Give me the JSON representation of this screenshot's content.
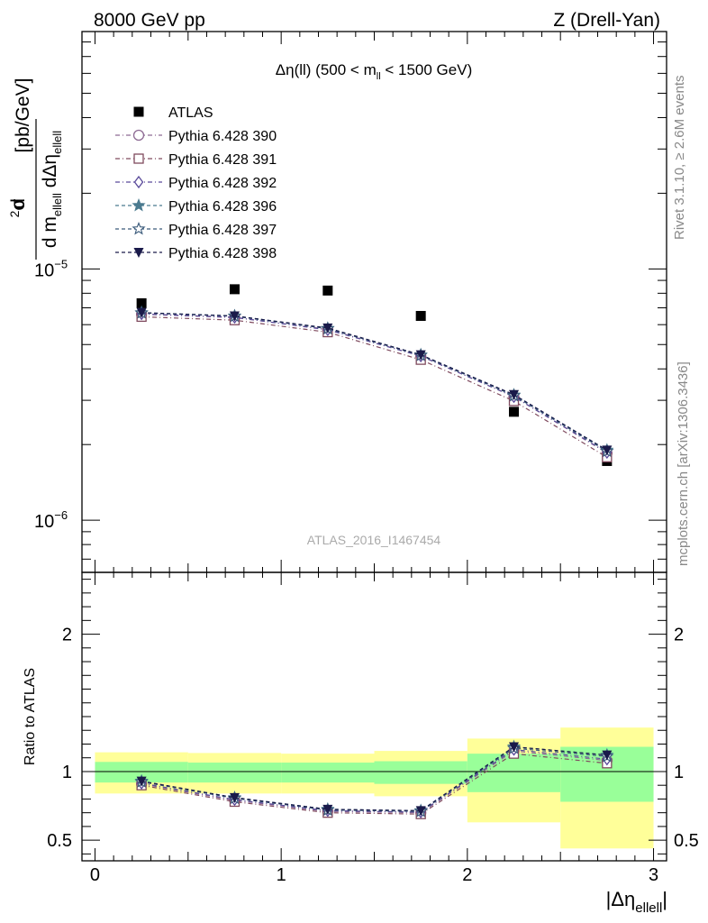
{
  "header": {
    "left": "8000 GeV pp",
    "right": "Z (Drell-Yan)"
  },
  "side_labels": {
    "rivet": "Rivet 3.1.10, ≥ 2.6M events",
    "mcplots": "mcplots.cern.ch [arXiv:1306.3436]"
  },
  "chart_data": [
    {
      "type": "scatter",
      "title": "Δη(ll) (500 < m_ll < 1500 GeV)",
      "title_parts": {
        "main": "Δη(ll) (500 < m",
        "sub": "ll",
        "tail": " < 1500 GeV)"
      },
      "ylabel": "d²σ / d m_ellell dΔη_ellell [pb/GeV]",
      "ylabel_parts": {
        "top": "d²σ",
        "bottom_a": "d m",
        "bottom_sub_a": "ellell",
        "bottom_b": "dΔη",
        "bottom_sub_b": "ellell",
        "unit": "[pb/GeV]"
      },
      "yscale": "log",
      "ylim": [
        6.2e-07,
        8.8e-05
      ],
      "xlim": [
        -0.07,
        3.07
      ],
      "ytick_labels": [
        {
          "value": 1e-05,
          "base": "10",
          "exp": "−5"
        },
        {
          "value": 1e-06,
          "base": "10",
          "exp": "−6"
        }
      ],
      "watermark": "ATLAS_2016_I1467454",
      "legend_position": "top-left",
      "x": [
        0.25,
        0.75,
        1.25,
        1.75,
        2.25,
        2.75
      ],
      "series": [
        {
          "name": "ATLAS",
          "marker": "filled-square",
          "color": "#000000",
          "values": [
            7.3e-06,
            8.3e-06,
            8.2e-06,
            6.5e-06,
            2.7e-06,
            1.72e-06
          ]
        },
        {
          "name": "Pythia 6.428 390",
          "marker": "open-circle",
          "color": "#8e6b94",
          "values": [
            6.6e-06,
            6.4e-06,
            5.75e-06,
            4.5e-06,
            3.1e-06,
            1.85e-06
          ]
        },
        {
          "name": "Pythia 6.428 391",
          "marker": "open-square",
          "color": "#7f4a5e",
          "values": [
            6.45e-06,
            6.25e-06,
            5.6e-06,
            4.35e-06,
            2.98e-06,
            1.78e-06
          ]
        },
        {
          "name": "Pythia 6.428 392",
          "marker": "open-diamond",
          "color": "#5a4a9a",
          "values": [
            6.62e-06,
            6.42e-06,
            5.72e-06,
            4.5e-06,
            3.1e-06,
            1.86e-06
          ]
        },
        {
          "name": "Pythia 6.428 396",
          "marker": "filled-star",
          "color": "#4a7a8f",
          "values": [
            6.7e-06,
            6.5e-06,
            5.8e-06,
            4.55e-06,
            3.15e-06,
            1.9e-06
          ]
        },
        {
          "name": "Pythia 6.428 397",
          "marker": "open-star",
          "color": "#3a5a7a",
          "values": [
            6.68e-06,
            6.48e-06,
            5.78e-06,
            4.53e-06,
            3.13e-06,
            1.88e-06
          ]
        },
        {
          "name": "Pythia 6.428 398",
          "marker": "filled-triangle-down",
          "color": "#1a1a4a",
          "values": [
            6.7e-06,
            6.5e-06,
            5.82e-06,
            4.55e-06,
            3.16e-06,
            1.9e-06
          ]
        }
      ]
    },
    {
      "type": "line",
      "ylabel": "Ratio to ATLAS",
      "xlabel": "|Δη_ellell|",
      "xlabel_parts": {
        "main": "|Δη",
        "sub": "ellell",
        "tail": "|"
      },
      "ylim": [
        0.35,
        2.45
      ],
      "xlim": [
        -0.07,
        3.07
      ],
      "xticks": [
        0,
        1,
        2,
        3
      ],
      "xtick_labels": [
        "0",
        "1",
        "2",
        "3"
      ],
      "yticks": [
        0.5,
        1,
        2
      ],
      "ytick_labels": [
        "0.5",
        "1",
        "2"
      ],
      "reference_line": 1,
      "bins": [
        [
          0,
          0.5
        ],
        [
          0.5,
          1
        ],
        [
          1,
          1.5
        ],
        [
          1.5,
          2
        ],
        [
          2,
          2.5
        ],
        [
          2.5,
          3
        ]
      ],
      "band_outer": [
        [
          0.84,
          1.14
        ],
        [
          0.84,
          1.135
        ],
        [
          0.84,
          1.13
        ],
        [
          0.82,
          1.15
        ],
        [
          0.63,
          1.24
        ],
        [
          0.44,
          1.32
        ]
      ],
      "band_inner": [
        [
          0.92,
          1.07
        ],
        [
          0.92,
          1.065
        ],
        [
          0.92,
          1.065
        ],
        [
          0.91,
          1.075
        ],
        [
          0.85,
          1.13
        ],
        [
          0.78,
          1.18
        ]
      ],
      "x": [
        0.25,
        0.75,
        1.25,
        1.75,
        2.25,
        2.75
      ],
      "series": [
        {
          "name": "Pythia 6.428 390",
          "color": "#8e6b94",
          "values": [
            0.91,
            0.79,
            0.71,
            0.7,
            1.15,
            1.08
          ]
        },
        {
          "name": "Pythia 6.428 391",
          "color": "#7f4a5e",
          "values": [
            0.9,
            0.78,
            0.7,
            0.69,
            1.13,
            1.06
          ]
        },
        {
          "name": "Pythia 6.428 392",
          "color": "#5a4a9a",
          "values": [
            0.915,
            0.795,
            0.715,
            0.705,
            1.16,
            1.09
          ]
        },
        {
          "name": "Pythia 6.428 396",
          "color": "#4a7a8f",
          "values": [
            0.93,
            0.81,
            0.725,
            0.715,
            1.18,
            1.12
          ]
        },
        {
          "name": "Pythia 6.428 397",
          "color": "#3a5a7a",
          "values": [
            0.925,
            0.805,
            0.72,
            0.71,
            1.17,
            1.11
          ]
        },
        {
          "name": "Pythia 6.428 398",
          "color": "#1a1a4a",
          "values": [
            0.93,
            0.81,
            0.725,
            0.715,
            1.18,
            1.12
          ]
        }
      ]
    }
  ]
}
